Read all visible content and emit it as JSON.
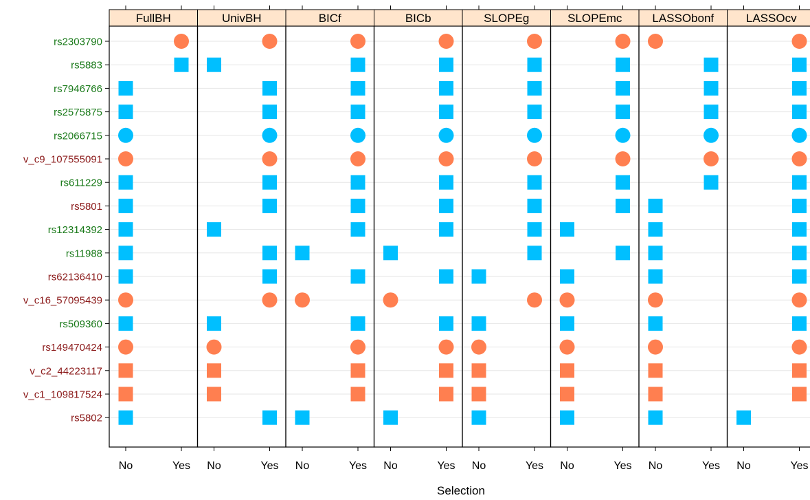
{
  "chart_data": {
    "type": "scatter",
    "xlabel": "Selection",
    "x_levels": [
      "No",
      "Yes"
    ],
    "panels": [
      "FullBH",
      "UnivBH",
      "BICf",
      "BICb",
      "SLOPEg",
      "SLOPEmc",
      "LASSObonf",
      "LASSOcv"
    ],
    "rows": [
      {
        "label": "rs2303790",
        "label_color": "#1a7a1a",
        "marker": "circle",
        "color": "#ff7f50",
        "selection": [
          "Yes",
          "Yes",
          "Yes",
          "Yes",
          "Yes",
          "Yes",
          "No",
          "Yes"
        ]
      },
      {
        "label": "rs5883",
        "label_color": "#1a7a1a",
        "marker": "square",
        "color": "#00bfff",
        "selection": [
          "Yes",
          "No",
          "Yes",
          "Yes",
          "Yes",
          "Yes",
          "Yes",
          "Yes"
        ]
      },
      {
        "label": "rs7946766",
        "label_color": "#1a7a1a",
        "marker": "square",
        "color": "#00bfff",
        "selection": [
          "No",
          "Yes",
          "Yes",
          "Yes",
          "Yes",
          "Yes",
          "Yes",
          "Yes"
        ]
      },
      {
        "label": "rs2575875",
        "label_color": "#1a7a1a",
        "marker": "square",
        "color": "#00bfff",
        "selection": [
          "No",
          "Yes",
          "Yes",
          "Yes",
          "Yes",
          "Yes",
          "Yes",
          "Yes"
        ]
      },
      {
        "label": "rs2066715",
        "label_color": "#1a7a1a",
        "marker": "circle",
        "color": "#00bfff",
        "selection": [
          "No",
          "Yes",
          "Yes",
          "Yes",
          "Yes",
          "Yes",
          "Yes",
          "Yes"
        ]
      },
      {
        "label": "v_c9_107555091",
        "label_color": "#8b1a1a",
        "marker": "circle",
        "color": "#ff7f50",
        "selection": [
          "No",
          "Yes",
          "Yes",
          "Yes",
          "Yes",
          "Yes",
          "Yes",
          "Yes"
        ]
      },
      {
        "label": "rs611229",
        "label_color": "#1a7a1a",
        "marker": "square",
        "color": "#00bfff",
        "selection": [
          "No",
          "Yes",
          "Yes",
          "Yes",
          "Yes",
          "Yes",
          "Yes",
          "Yes"
        ]
      },
      {
        "label": "rs5801",
        "label_color": "#8b1a1a",
        "marker": "square",
        "color": "#00bfff",
        "selection": [
          "No",
          "Yes",
          "Yes",
          "Yes",
          "Yes",
          "Yes",
          "No",
          "Yes"
        ]
      },
      {
        "label": "rs12314392",
        "label_color": "#1a7a1a",
        "marker": "square",
        "color": "#00bfff",
        "selection": [
          "No",
          "No",
          "Yes",
          "Yes",
          "Yes",
          "No",
          "No",
          "Yes"
        ]
      },
      {
        "label": "rs11988",
        "label_color": "#1a7a1a",
        "marker": "square",
        "color": "#00bfff",
        "selection": [
          "No",
          "Yes",
          "No",
          "No",
          "Yes",
          "Yes",
          "No",
          "Yes"
        ]
      },
      {
        "label": "rs62136410",
        "label_color": "#8b1a1a",
        "marker": "square",
        "color": "#00bfff",
        "selection": [
          "No",
          "Yes",
          "Yes",
          "Yes",
          "No",
          "No",
          "No",
          "Yes"
        ]
      },
      {
        "label": "v_c16_57095439",
        "label_color": "#8b1a1a",
        "marker": "circle",
        "color": "#ff7f50",
        "selection": [
          "No",
          "Yes",
          "No",
          "No",
          "Yes",
          "No",
          "No",
          "Yes"
        ]
      },
      {
        "label": "rs509360",
        "label_color": "#1a7a1a",
        "marker": "square",
        "color": "#00bfff",
        "selection": [
          "No",
          "No",
          "Yes",
          "Yes",
          "No",
          "No",
          "No",
          "Yes"
        ]
      },
      {
        "label": "rs149470424",
        "label_color": "#8b1a1a",
        "marker": "circle",
        "color": "#ff7f50",
        "selection": [
          "No",
          "No",
          "Yes",
          "Yes",
          "No",
          "No",
          "No",
          "Yes"
        ]
      },
      {
        "label": "v_c2_44223117",
        "label_color": "#8b1a1a",
        "marker": "square",
        "color": "#ff7f50",
        "selection": [
          "No",
          "No",
          "Yes",
          "Yes",
          "No",
          "No",
          "No",
          "Yes"
        ]
      },
      {
        "label": "v_c1_109817524",
        "label_color": "#8b1a1a",
        "marker": "square",
        "color": "#ff7f50",
        "selection": [
          "No",
          "No",
          "Yes",
          "Yes",
          "No",
          "No",
          "No",
          "Yes"
        ]
      },
      {
        "label": "rs5802",
        "label_color": "#8b1a1a",
        "marker": "square",
        "color": "#00bfff",
        "selection": [
          "No",
          "Yes",
          "No",
          "No",
          "No",
          "No",
          "No",
          "No"
        ]
      }
    ],
    "grid": true,
    "strip_color": "#ffe5cc"
  }
}
